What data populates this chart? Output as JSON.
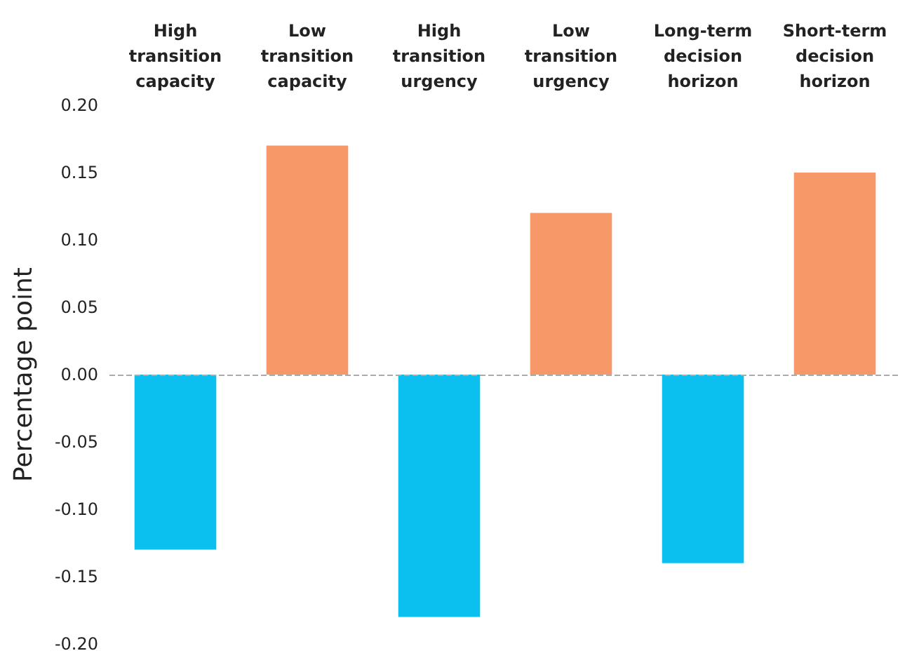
{
  "chart_data": {
    "type": "bar",
    "ylabel": "Percentage point",
    "categories": [
      "High\ntransition\ncapacity",
      "Low\ntransition\ncapacity",
      "High\ntransition\nurgency",
      "Low\ntransition\nurgency",
      "Long-term\ndecision\nhorizon",
      "Short-term\ndecision\nhorizon"
    ],
    "values": [
      -0.13,
      0.17,
      -0.18,
      0.12,
      -0.14,
      0.15
    ],
    "colors": [
      "#0bbfef",
      "#f79868",
      "#0bbfef",
      "#f79868",
      "#0bbfef",
      "#f79868"
    ],
    "ylim": [
      -0.2,
      0.2
    ],
    "yticks": [
      {
        "value": -0.2,
        "label": "-0.20"
      },
      {
        "value": -0.15,
        "label": "-0.15"
      },
      {
        "value": -0.1,
        "label": "-0.10"
      },
      {
        "value": -0.05,
        "label": "-0.05"
      },
      {
        "value": 0,
        "label": "0.00"
      },
      {
        "value": 0.05,
        "label": "0.05"
      },
      {
        "value": 0.1,
        "label": "0.10"
      },
      {
        "value": 0.15,
        "label": "0.15"
      },
      {
        "value": 0.2,
        "label": "0.20"
      }
    ],
    "ref_lines": [
      {
        "axis": "y",
        "value": 0,
        "color": "#aaaaaa",
        "line_style": "dashed"
      }
    ],
    "grid": false
  }
}
